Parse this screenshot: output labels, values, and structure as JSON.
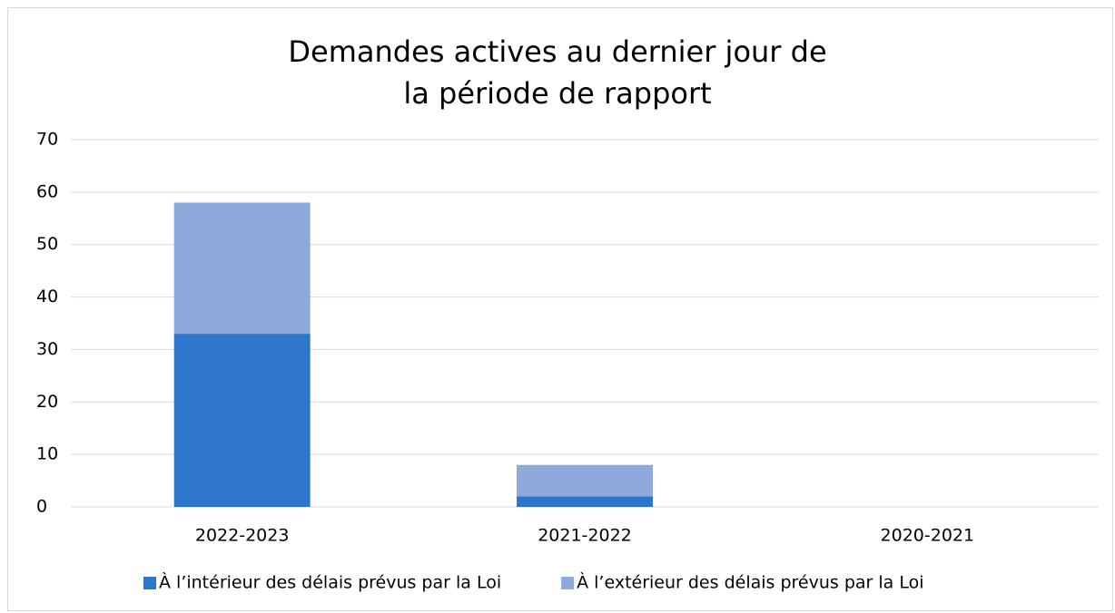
{
  "chart_data": {
    "type": "bar",
    "stacked": true,
    "title": "Demandes actives au dernier jour de la période de rapport",
    "categories": [
      "2022-2023",
      "2021-2022",
      "2020-2021"
    ],
    "series": [
      {
        "name": "À l’intérieur des délais prévus par la Loi",
        "color": "#2e75cc",
        "values": [
          33,
          2,
          0
        ]
      },
      {
        "name": "À l’extérieur des délais prévus par la Loi",
        "color": "#8ea9dc",
        "values": [
          25,
          6,
          0
        ]
      }
    ],
    "ylim": [
      0,
      70
    ],
    "yticks": [
      0,
      10,
      20,
      30,
      40,
      50,
      60,
      70
    ],
    "grid": true,
    "legend": "bottom"
  }
}
